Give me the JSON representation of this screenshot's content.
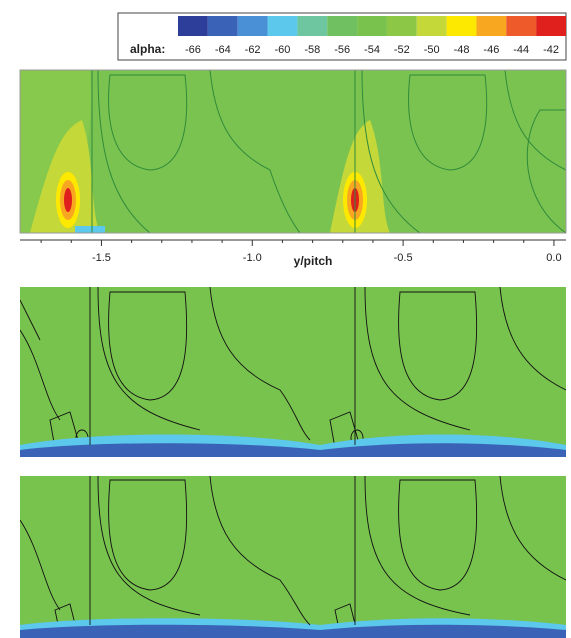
{
  "chart_data": {
    "type": "contour",
    "colorbar": {
      "label": "alpha:",
      "levels": [
        -66,
        -64,
        -62,
        -60,
        -58,
        -56,
        -54,
        -52,
        -50,
        -48,
        -46,
        -44,
        -42
      ],
      "colors": [
        "#2c3e9a",
        "#3a63b8",
        "#4a90d6",
        "#5cc8ec",
        "#6dc6a0",
        "#70bf60",
        "#7ac24e",
        "#8cc846",
        "#c4d83a",
        "#fde800",
        "#f8a820",
        "#ee5a2a",
        "#e0201c"
      ]
    },
    "xlabel": "y/pitch",
    "xlim": [
      -1.77,
      0.04
    ],
    "xticks": [
      -1.5,
      {
        "value": -1.0,
        "label": "-1.0"
      },
      -0.5,
      {
        "value": 0.0,
        "label": "0.0"
      }
    ]
  }
}
